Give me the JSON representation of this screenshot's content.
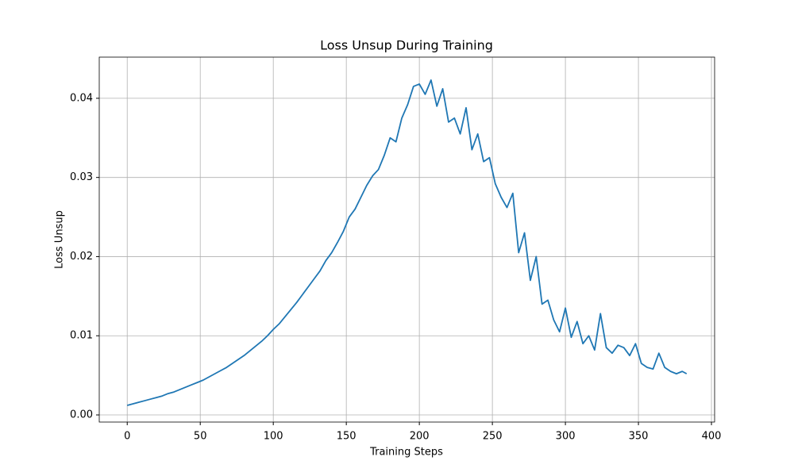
{
  "chart_data": {
    "type": "line",
    "title": "Loss Unsup During Training",
    "xlabel": "Training Steps",
    "ylabel": "Loss Unsup",
    "x": [
      0,
      4,
      8,
      12,
      16,
      20,
      24,
      28,
      32,
      36,
      40,
      44,
      48,
      52,
      56,
      60,
      64,
      68,
      72,
      76,
      80,
      84,
      88,
      92,
      96,
      100,
      104,
      108,
      112,
      116,
      120,
      124,
      128,
      132,
      136,
      140,
      144,
      148,
      152,
      156,
      160,
      164,
      168,
      172,
      176,
      180,
      184,
      188,
      192,
      196,
      200,
      204,
      208,
      212,
      216,
      220,
      224,
      228,
      232,
      236,
      240,
      244,
      248,
      252,
      256,
      260,
      264,
      268,
      272,
      276,
      280,
      284,
      288,
      292,
      296,
      300,
      304,
      308,
      312,
      316,
      320,
      324,
      328,
      332,
      336,
      340,
      344,
      348,
      352,
      356,
      360,
      364,
      368,
      372,
      376,
      380,
      383
    ],
    "series": [
      {
        "name": "Loss Unsup",
        "color": "#1f77b4",
        "values": [
          0.0012,
          0.0014,
          0.0016,
          0.0018,
          0.002,
          0.0022,
          0.0024,
          0.0027,
          0.0029,
          0.0032,
          0.0035,
          0.0038,
          0.0041,
          0.0044,
          0.0048,
          0.0052,
          0.0056,
          0.006,
          0.0065,
          0.007,
          0.0075,
          0.0081,
          0.0087,
          0.0093,
          0.01,
          0.0108,
          0.0115,
          0.0124,
          0.0133,
          0.0142,
          0.0152,
          0.0162,
          0.0172,
          0.0182,
          0.0195,
          0.0205,
          0.0218,
          0.0232,
          0.025,
          0.026,
          0.0275,
          0.029,
          0.0302,
          0.031,
          0.0328,
          0.035,
          0.0345,
          0.0375,
          0.0392,
          0.0415,
          0.0418,
          0.0405,
          0.0423,
          0.039,
          0.0412,
          0.037,
          0.0375,
          0.0355,
          0.0388,
          0.0335,
          0.0355,
          0.032,
          0.0325,
          0.0292,
          0.0275,
          0.0262,
          0.028,
          0.0205,
          0.023,
          0.017,
          0.02,
          0.014,
          0.0145,
          0.012,
          0.0105,
          0.0135,
          0.0098,
          0.0118,
          0.009,
          0.01,
          0.0082,
          0.0128,
          0.0085,
          0.0078,
          0.0088,
          0.0085,
          0.0075,
          0.009,
          0.0065,
          0.006,
          0.0058,
          0.0078,
          0.006,
          0.0055,
          0.0052,
          0.0055,
          0.0052
        ]
      }
    ],
    "xlim": [
      -19.15,
      402.15
    ],
    "xticks": [
      0,
      50,
      100,
      150,
      200,
      250,
      300,
      350,
      400
    ],
    "ylim": [
      -0.0009,
      0.0452
    ],
    "yticks": [
      {
        "value": 0,
        "label": "0.00"
      },
      {
        "value": 0.01,
        "label": "0.01"
      },
      {
        "value": 0.02,
        "label": "0.02"
      },
      {
        "value": 0.03,
        "label": "0.03"
      },
      {
        "value": 0.04,
        "label": "0.04"
      }
    ],
    "grid": true
  }
}
